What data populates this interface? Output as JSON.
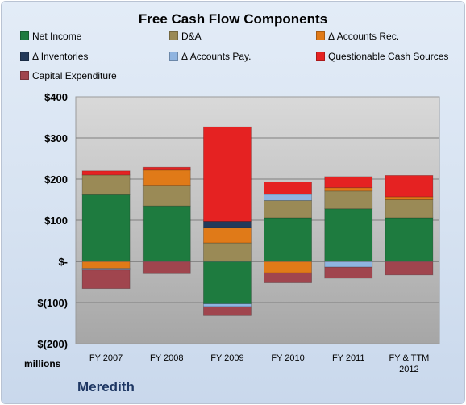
{
  "chart_data": {
    "type": "bar",
    "stacked": true,
    "title": "Free Cash Flow Components",
    "units_label": "millions",
    "company": "Meredith",
    "ylim": [
      -200,
      400
    ],
    "yticks": [
      400,
      300,
      200,
      100,
      0,
      -100,
      -200
    ],
    "ytick_labels": [
      "$400",
      "$300",
      "$200",
      "$100",
      "$-",
      "$(100)",
      "$(200)"
    ],
    "categories": [
      "FY 2007",
      "FY 2008",
      "FY 2009",
      "FY 2010",
      "FY 2011",
      "FY & TTM 2012"
    ],
    "legend_position": "top",
    "series": [
      {
        "name": "Net Income",
        "color": "#1e7b3f",
        "values": [
          162,
          135,
          -103,
          106,
          128,
          106
        ]
      },
      {
        "name": "D&A",
        "color": "#9a8a56",
        "values": [
          48,
          50,
          45,
          42,
          43,
          44
        ]
      },
      {
        "name": "Δ Accounts Rec.",
        "color": "#e07a18",
        "values": [
          -17,
          37,
          37,
          -28,
          8,
          7
        ]
      },
      {
        "name": "Δ Inventories",
        "color": "#233a5a",
        "values": [
          0,
          0,
          15,
          0,
          0,
          0
        ]
      },
      {
        "name": "Δ Accounts Pay.",
        "color": "#8fb4e0",
        "values": [
          -4,
          0,
          -7,
          15,
          -14,
          0
        ]
      },
      {
        "name": "Questionable Cash Sources",
        "color": "#e52222",
        "values": [
          10,
          7,
          230,
          30,
          27,
          52
        ]
      },
      {
        "name": "Capital Expenditure",
        "color": "#a0454e",
        "values": [
          -45,
          -30,
          -22,
          -24,
          -27,
          -33
        ]
      }
    ]
  }
}
